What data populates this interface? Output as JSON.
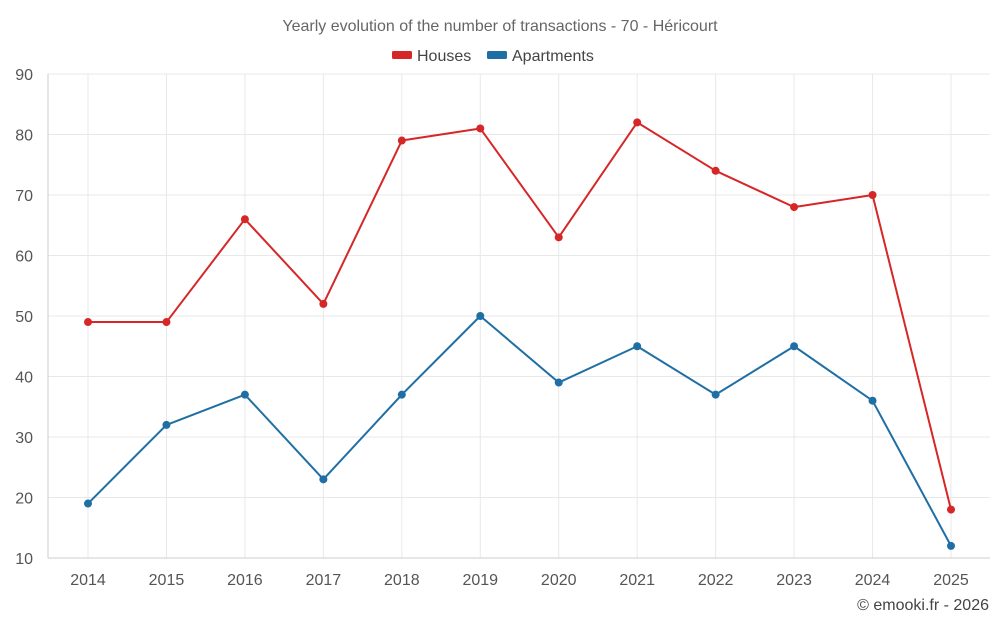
{
  "chart_data": {
    "type": "line",
    "title": "Yearly evolution of the number of transactions - 70 - Héricourt",
    "categories": [
      "2014",
      "2015",
      "2016",
      "2017",
      "2018",
      "2019",
      "2020",
      "2021",
      "2022",
      "2023",
      "2024",
      "2025"
    ],
    "series": [
      {
        "name": "Houses",
        "color": "#d62728",
        "values": [
          49,
          49,
          66,
          52,
          79,
          81,
          63,
          82,
          74,
          68,
          70,
          18
        ]
      },
      {
        "name": "Apartments",
        "color": "#1f6fa5",
        "values": [
          19,
          32,
          37,
          23,
          37,
          50,
          39,
          45,
          37,
          45,
          36,
          12
        ]
      }
    ],
    "ylim": [
      10,
      90
    ],
    "yticks": [
      10,
      20,
      30,
      40,
      50,
      60,
      70,
      80,
      90
    ],
    "xlabel": "",
    "ylabel": "",
    "grid": true,
    "legend_position": "top-center"
  },
  "footer": {
    "copyright": "© emooki.fr - 2026"
  }
}
